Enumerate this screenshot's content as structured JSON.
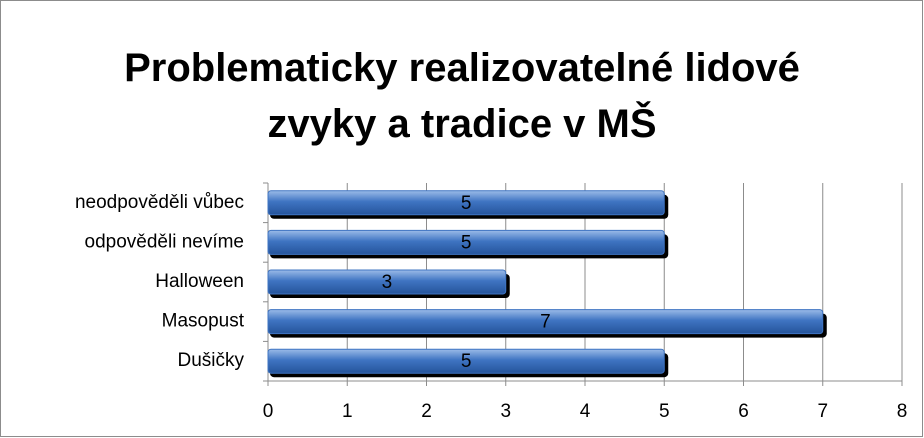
{
  "chart_data": {
    "type": "bar",
    "orientation": "horizontal",
    "title": "Problematicky realizovatelné lidové zvyky a tradice v MŠ",
    "categories": [
      "neodpověděli vůbec",
      "odpověděli nevíme",
      "Halloween",
      "Masopust",
      "Dušičky"
    ],
    "values": [
      5,
      5,
      3,
      7,
      5
    ],
    "color": "#3f74c2",
    "xlim": [
      0,
      8
    ],
    "xticks": [
      0,
      1,
      2,
      3,
      4,
      5,
      6,
      7,
      8
    ],
    "grid": true
  }
}
